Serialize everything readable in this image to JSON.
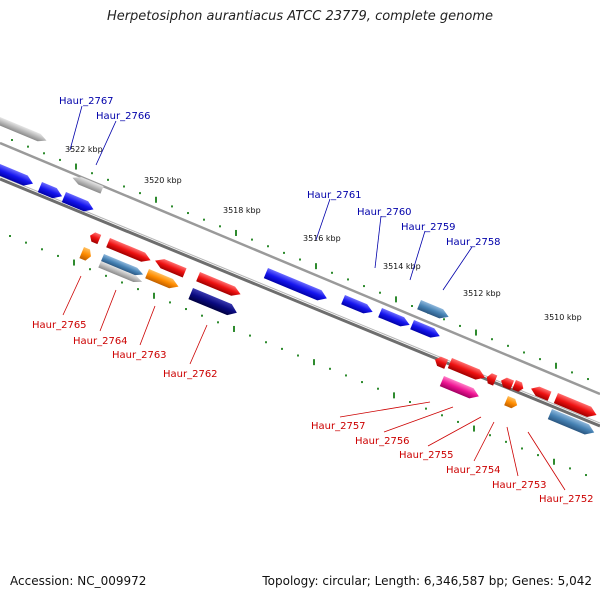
{
  "title": "Herpetosiphon aurantiacus ATCC 23779, complete genome",
  "footer": {
    "accession": "Accession: NC_009972",
    "info": "Topology: circular; Length: 6,346,587 bp; Genes: 5,042"
  },
  "colors": {
    "backbone": "#777777",
    "tick": "#2e8b2e",
    "top_label": "#0000aa",
    "bottom_label": "#cc0000",
    "gene_blue": "#1515ee",
    "gene_gray": "#b0b0b0",
    "gene_red": "#ee1111",
    "gene_orange": "#ff8c00",
    "gene_steel": "#4682b4",
    "gene_navy": "#0a0a80",
    "gene_pink": "#ee1493"
  },
  "scale_labels": [
    "3522 kbp",
    "3520 kbp",
    "3518 kbp",
    "3516 kbp",
    "3514 kbp",
    "3512 kbp",
    "3510 kbp"
  ],
  "top_labels": [
    "Haur_2767",
    "Haur_2766",
    "Haur_2761",
    "Haur_2760",
    "Haur_2759",
    "Haur_2758"
  ],
  "bottom_labels": [
    "Haur_2765",
    "Haur_2764",
    "Haur_2763",
    "Haur_2762",
    "Haur_2757",
    "Haur_2756",
    "Haur_2755",
    "Haur_2754",
    "Haur_2753",
    "Haur_2752"
  ]
}
